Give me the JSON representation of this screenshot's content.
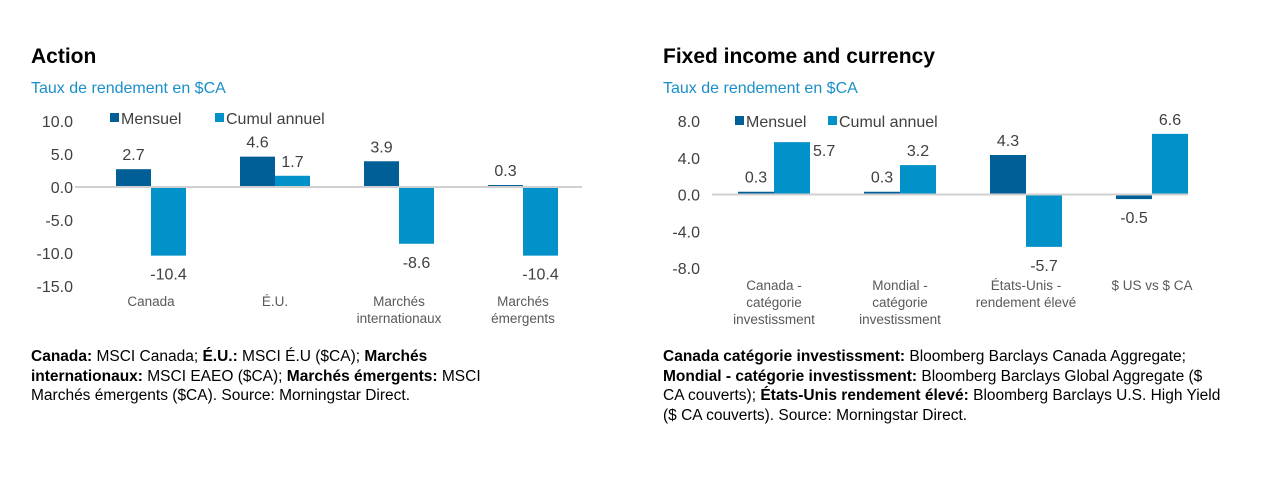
{
  "colors": {
    "mensuel": "#005f96",
    "cumul": "#0391c9",
    "axis": "#d0d0d0",
    "text": "#404040",
    "subtitle": "#1a8fc9"
  },
  "chart_data": [
    {
      "type": "bar",
      "title": "Action",
      "subtitle": "Taux de rendement en $CA",
      "categories": [
        [
          "Canada"
        ],
        [
          "É.U."
        ],
        [
          "Marchés",
          "internationaux"
        ],
        [
          "Marchés",
          "émergents"
        ]
      ],
      "series": [
        {
          "name": "Mensuel",
          "values": [
            2.7,
            4.6,
            3.9,
            0.3
          ]
        },
        {
          "name": "Cumul annuel",
          "values": [
            -10.4,
            1.7,
            -8.6,
            -10.4
          ]
        }
      ],
      "yticks": [
        "10.0",
        "5.0",
        "0.0",
        "-5.0",
        "-10.0",
        "-15.0"
      ],
      "ylim": [
        -15,
        10
      ],
      "legend": "top",
      "grid": false,
      "note": [
        {
          "b": "Canada:",
          "t": " MSCI Canada; "
        },
        {
          "b": "É.U.:",
          "t": " MSCI É.U ($CA); "
        },
        {
          "b": "Marchés internationaux:",
          "t": " MSCI EAEO ($CA); "
        },
        {
          "b": "Marchés émergents:",
          "t": " MSCI Marchés émergents ($CA). Source: Morningstar Direct."
        }
      ]
    },
    {
      "type": "bar",
      "title": "Fixed income and currency",
      "subtitle": "Taux de rendement en $CA",
      "categories": [
        [
          "Canada -",
          "catégorie",
          "investissment"
        ],
        [
          "Mondial -",
          "catégorie",
          "investissment"
        ],
        [
          "États-Unis -",
          "rendement élevé"
        ],
        [
          "$ US vs $ CA"
        ]
      ],
      "series": [
        {
          "name": "Mensuel",
          "values": [
            0.3,
            0.3,
            4.3,
            -0.5
          ]
        },
        {
          "name": "Cumul annuel",
          "values": [
            5.7,
            3.2,
            -5.7,
            6.6
          ]
        }
      ],
      "yticks": [
        "8.0",
        "4.0",
        "0.0",
        "-4.0",
        "-8.0"
      ],
      "ylim": [
        -8,
        8
      ],
      "legend": "top",
      "grid": false,
      "note": [
        {
          "b": "Canada catégorie investissment:",
          "t": " Bloomberg Barclays Canada Aggregate; "
        },
        {
          "b": "Mondial - catégorie investissment:",
          "t": " Bloomberg Barclays Global Aggregate ($ CA couverts); "
        },
        {
          "b": "États-Unis rendement élevé:",
          "t": " Bloomberg Barclays U.S. High Yield ($ CA couverts). Source: Morningstar Direct."
        }
      ]
    }
  ]
}
